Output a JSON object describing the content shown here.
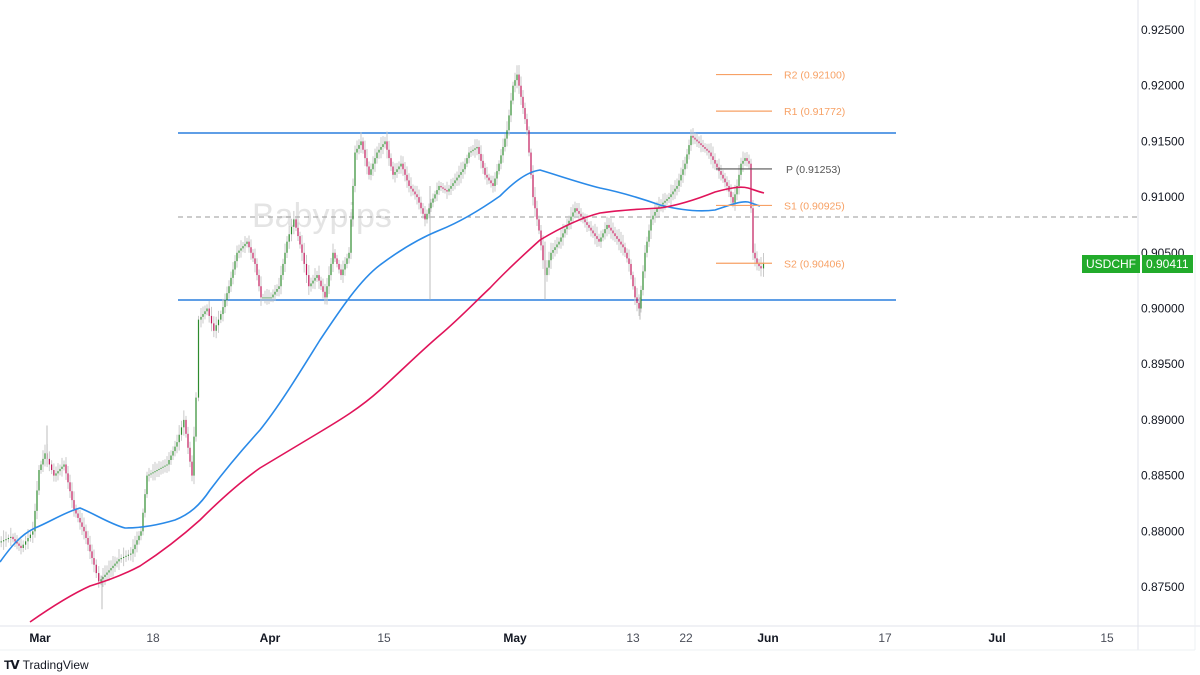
{
  "chart_data": {
    "type": "candlestick",
    "symbol": "USDCHF",
    "last_price": "0.90411",
    "watermark": "Babypips",
    "xlabel": "",
    "ylabel": "",
    "ylim": [
      0.8715,
      0.927
    ],
    "y_ticks": [
      "0.92500",
      "0.92000",
      "0.91500",
      "0.91000",
      "0.90500",
      "0.90000",
      "0.89500",
      "0.89000",
      "0.88500",
      "0.88000",
      "0.87500"
    ],
    "x_ticks": [
      {
        "label": "Mar",
        "major": true
      },
      {
        "label": "18",
        "major": false
      },
      {
        "label": "Apr",
        "major": true
      },
      {
        "label": "15",
        "major": false
      },
      {
        "label": "May",
        "major": true
      },
      {
        "label": "13",
        "major": false
      },
      {
        "label": "22",
        "major": false
      },
      {
        "label": "Jun",
        "major": true
      },
      {
        "label": "17",
        "major": false
      },
      {
        "label": "Jul",
        "major": true
      },
      {
        "label": "15",
        "major": false
      }
    ],
    "horizontal_lines": [
      {
        "name": "range-top",
        "price": 0.9158,
        "color": "#2a7fde",
        "style": "solid"
      },
      {
        "name": "range-bottom",
        "price": 0.9008,
        "color": "#2a7fde",
        "style": "solid"
      },
      {
        "name": "range-mid",
        "price": 0.9083,
        "color": "#9a9a9a",
        "style": "dashed"
      }
    ],
    "pivot_levels": [
      {
        "label": "R2 (0.92100)",
        "price": 0.921,
        "color": "#f7a165"
      },
      {
        "label": "R1 (0.91772)",
        "price": 0.91772,
        "color": "#f7a165"
      },
      {
        "label": "P (0.91253)",
        "price": 0.91253,
        "color": "#555555"
      },
      {
        "label": "S1 (0.90925)",
        "price": 0.90925,
        "color": "#f7a165"
      },
      {
        "label": "S2 (0.90406)",
        "price": 0.90406,
        "color": "#f7a165"
      }
    ],
    "moving_averages": [
      {
        "name": "MA 100",
        "color": "#2a8ae8"
      },
      {
        "name": "MA 200",
        "color": "#e0145a"
      }
    ],
    "price_path_approx": [
      {
        "date": "late Feb",
        "close": 0.879
      },
      {
        "date": "Mar 5",
        "close": 0.887
      },
      {
        "date": "Mar 11",
        "close": 0.8755
      },
      {
        "date": "Mar 18",
        "close": 0.8855
      },
      {
        "date": "Mar 21",
        "close": 0.885
      },
      {
        "date": "Mar 22",
        "close": 0.899
      },
      {
        "date": "Apr 1",
        "close": 0.905
      },
      {
        "date": "Apr 10",
        "close": 0.915
      },
      {
        "date": "Apr 19",
        "close": 0.908
      },
      {
        "date": "Apr 26",
        "close": 0.914
      },
      {
        "date": "May 1",
        "close": 0.9215
      },
      {
        "date": "May 3",
        "close": 0.91
      },
      {
        "date": "May 6",
        "close": 0.904
      },
      {
        "date": "May 10",
        "close": 0.909
      },
      {
        "date": "May 16",
        "close": 0.9
      },
      {
        "date": "May 21",
        "close": 0.91
      },
      {
        "date": "May 23",
        "close": 0.9155
      },
      {
        "date": "May 28",
        "close": 0.912
      },
      {
        "date": "May 29",
        "close": 0.9135
      },
      {
        "date": "May 31",
        "close": 0.9041
      }
    ]
  },
  "branding": {
    "name": "TradingView"
  }
}
